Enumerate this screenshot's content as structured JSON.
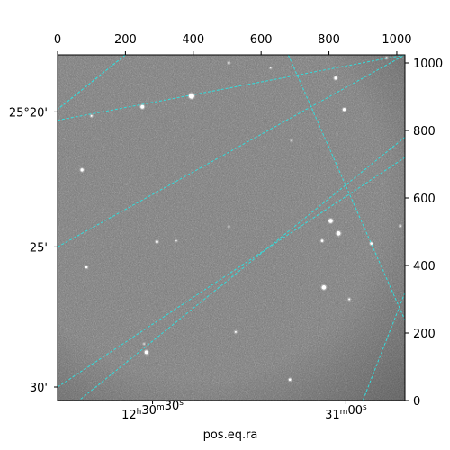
{
  "chart_data": {
    "type": "scatter",
    "title": "",
    "xlabel": "pos.eq.ra",
    "ylabel": "",
    "pixel_axes": {
      "x_range": [
        0,
        1024
      ],
      "y_range": [
        0,
        1024
      ],
      "top_ticks": [
        0,
        200,
        400,
        600,
        800,
        1000
      ],
      "right_ticks": [
        0,
        200,
        400,
        600,
        800,
        1000
      ]
    },
    "ra_ticks": [
      {
        "x": 280,
        "h": "12",
        "m": "30",
        "s": "30"
      },
      {
        "x": 850,
        "h": "",
        "m": "31",
        "s": "00"
      }
    ],
    "dec_ticks": [
      {
        "y": 855,
        "label": "25°20'"
      },
      {
        "y": 455,
        "label": "25'"
      },
      {
        "y": 40,
        "label": "30'"
      }
    ],
    "grid": {
      "color": "#33dddd",
      "ra_lines": [
        [
          [
            200,
            1024
          ],
          [
            -40,
            830
          ]
        ],
        [
          [
            1024,
            780
          ],
          [
            -60,
            -100
          ]
        ],
        [
          [
            680,
            1024
          ],
          [
            1080,
            110
          ]
        ],
        [
          [
            1024,
            320
          ],
          [
            900,
            0
          ]
        ],
        [
          [
            200,
            1024
          ],
          [
            -40,
            830
          ]
        ]
      ],
      "dec_lines": [
        [
          [
            0,
            830
          ],
          [
            1024,
            1024
          ]
        ],
        [
          [
            0,
            455
          ],
          [
            1024,
            1024
          ]
        ],
        [
          [
            0,
            40
          ],
          [
            1024,
            720
          ]
        ]
      ]
    },
    "stars": [
      {
        "x": 395,
        "y": 902,
        "r": 9
      },
      {
        "x": 250,
        "y": 870,
        "r": 6
      },
      {
        "x": 820,
        "y": 955,
        "r": 5
      },
      {
        "x": 845,
        "y": 862,
        "r": 5
      },
      {
        "x": 72,
        "y": 683,
        "r": 5
      },
      {
        "x": 805,
        "y": 532,
        "r": 7
      },
      {
        "x": 828,
        "y": 495,
        "r": 7
      },
      {
        "x": 780,
        "y": 473,
        "r": 4
      },
      {
        "x": 925,
        "y": 465,
        "r": 4
      },
      {
        "x": 1010,
        "y": 517,
        "r": 3
      },
      {
        "x": 293,
        "y": 470,
        "r": 4
      },
      {
        "x": 85,
        "y": 395,
        "r": 4
      },
      {
        "x": 785,
        "y": 335,
        "r": 7
      },
      {
        "x": 860,
        "y": 300,
        "r": 3
      },
      {
        "x": 262,
        "y": 143,
        "r": 6
      },
      {
        "x": 525,
        "y": 203,
        "r": 3
      },
      {
        "x": 685,
        "y": 62,
        "r": 4
      },
      {
        "x": 505,
        "y": 1000,
        "r": 3
      },
      {
        "x": 100,
        "y": 843,
        "r": 3
      },
      {
        "x": 628,
        "y": 985,
        "r": 2
      },
      {
        "x": 690,
        "y": 770,
        "r": 2
      },
      {
        "x": 505,
        "y": 515,
        "r": 2
      },
      {
        "x": 350,
        "y": 473,
        "r": 2
      },
      {
        "x": 255,
        "y": 168,
        "r": 2
      },
      {
        "x": 970,
        "y": 1015,
        "r": 3
      }
    ]
  }
}
